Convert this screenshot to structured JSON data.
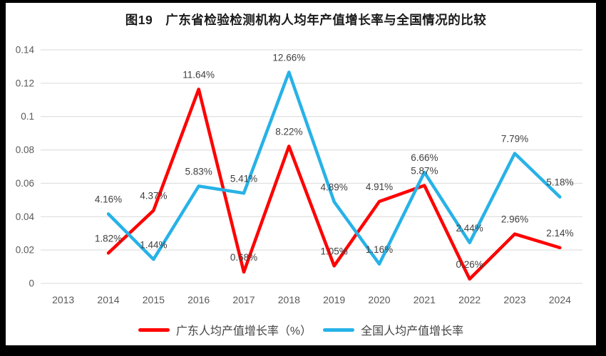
{
  "frame": {
    "outer_background": "#000000",
    "chart_background": "#ffffff"
  },
  "chart_data": {
    "type": "line",
    "title": "图19　广东省检验检测机构人均年产值增长率与全国情况的比较",
    "categories": [
      "2013",
      "2014",
      "2015",
      "2016",
      "2017",
      "2018",
      "2019",
      "2020",
      "2021",
      "2022",
      "2023",
      "2024"
    ],
    "series": [
      {
        "name": "广东人均产值增长率（%）",
        "color": "#FF0000",
        "values": [
          null,
          1.82,
          4.37,
          11.64,
          0.68,
          8.22,
          1.05,
          4.91,
          5.87,
          0.26,
          2.96,
          2.14
        ]
      },
      {
        "name": "全国人均产值增长率",
        "color": "#27B2E7",
        "values": [
          null,
          4.16,
          1.44,
          5.83,
          5.41,
          12.66,
          4.89,
          1.16,
          6.66,
          2.44,
          7.79,
          5.18
        ]
      }
    ],
    "values_unit": "percent",
    "ylim": [
      0,
      0.14
    ],
    "ytick_labels": [
      "0",
      "0.02",
      "0.04",
      "0.06",
      "0.08",
      "0.1",
      "0.12",
      "0.14"
    ],
    "grid": "horizontal",
    "gridline_color": "#D9D9D9",
    "axis_label_color": "#595959",
    "data_label_color": "#404040",
    "data_label_format": "0.00%",
    "legend_position": "bottom"
  }
}
